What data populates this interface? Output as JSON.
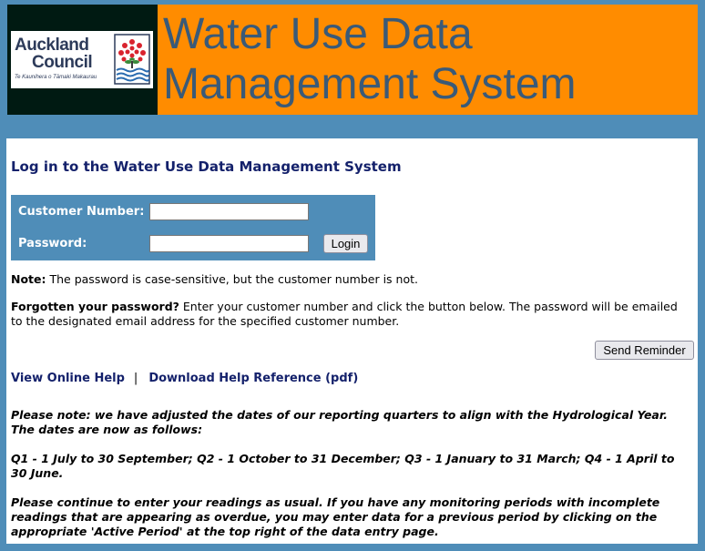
{
  "header": {
    "logo_line1": "Auckland",
    "logo_line2": "Council",
    "logo_subtitle": "Te Kaunihera o Tāmaki Makaurau",
    "title_line1": "Water Use Data",
    "title_line2": "Management System",
    "colors": {
      "title_bg": "#ff8c00",
      "title_text": "#3a5a78",
      "logo_bg": "#001a12"
    }
  },
  "login": {
    "heading": "Log in to the Water Use Data Management System",
    "customer_number_label": "Customer Number:",
    "customer_number_value": "",
    "password_label": "Password:",
    "password_value": "",
    "login_button": "Login"
  },
  "note": {
    "label": "Note:",
    "text": " The password is case-sensitive, but the customer number is not."
  },
  "forgot": {
    "label": "Forgotten your password?",
    "text": " Enter your customer number and click the button below. The password will be emailed to the designated email address for the specified customer number.",
    "button": "Send Reminder"
  },
  "links": {
    "online_help": "View Online Help",
    "separator": "|",
    "download_help": "Download Help Reference (pdf)"
  },
  "notices": [
    "Please note: we have adjusted the dates of our reporting quarters to align with the Hydrological Year. The dates are now as follows:",
    "Q1 - 1 July to 30 September; Q2 - 1 October to 31 December; Q3 - 1 January to 31 March; Q4 - 1 April to 30 June.",
    "Please continue to enter your readings as usual. If you have any monitoring periods with incomplete readings that are appearing as overdue, you may enter data for a previous period by clicking on the appropriate 'Active Period' at the top right of the data entry page."
  ],
  "colors": {
    "page_bg": "#4f8db8",
    "link": "#14216b",
    "login_box_bg": "#4f8db8"
  }
}
